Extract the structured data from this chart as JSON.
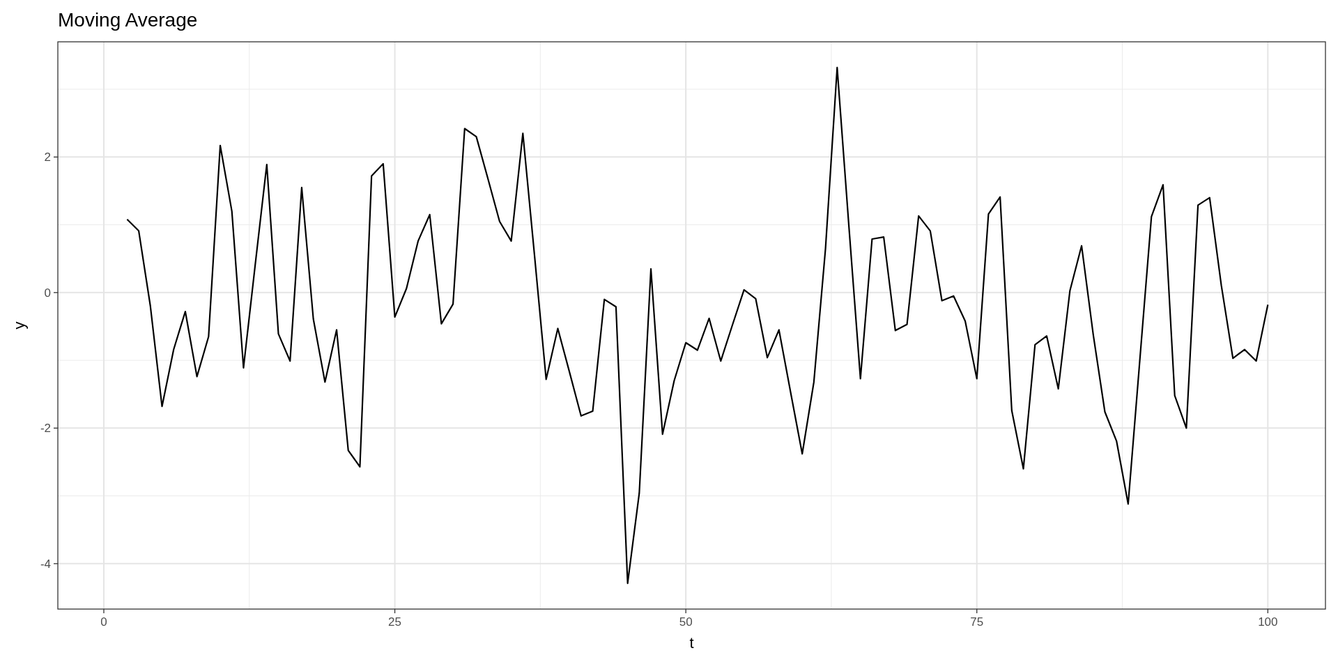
{
  "chart_data": {
    "type": "line",
    "title": "Moving Average",
    "xlabel": "t",
    "ylabel": "y",
    "x": [
      2,
      3,
      4,
      5,
      6,
      7,
      8,
      9,
      10,
      11,
      12,
      13,
      14,
      15,
      16,
      17,
      18,
      19,
      20,
      21,
      22,
      23,
      24,
      25,
      26,
      27,
      28,
      29,
      30,
      31,
      32,
      33,
      34,
      35,
      36,
      37,
      38,
      39,
      40,
      41,
      42,
      43,
      44,
      45,
      46,
      47,
      48,
      49,
      50,
      51,
      52,
      53,
      54,
      55,
      56,
      57,
      58,
      59,
      60,
      61,
      62,
      63,
      64,
      65,
      66,
      67,
      68,
      69,
      70,
      71,
      72,
      73,
      74,
      75,
      76,
      77,
      78,
      79,
      80,
      81,
      82,
      83,
      84,
      85,
      86,
      87,
      88,
      89,
      90,
      91,
      92,
      93,
      94,
      95,
      96,
      97,
      98,
      99,
      100
    ],
    "series": [
      {
        "color": "#000000",
        "values": [
          1.08,
          0.91,
          -0.2,
          -1.68,
          -0.84,
          -0.28,
          -1.24,
          -0.65,
          2.17,
          1.2,
          -1.11,
          0.4,
          1.89,
          -0.61,
          -1.01,
          1.55,
          -0.39,
          -1.32,
          -0.55,
          -2.33,
          -2.57,
          1.72,
          1.9,
          -0.36,
          0.06,
          0.76,
          1.15,
          -0.46,
          -0.17,
          2.42,
          2.3,
          1.68,
          1.05,
          0.76,
          2.35,
          0.55,
          -1.28,
          -0.53,
          -1.17,
          -1.82,
          -1.75,
          -0.1,
          -0.21,
          -4.29,
          -2.96,
          0.35,
          -2.09,
          -1.3,
          -0.74,
          -0.85,
          -0.38,
          -1.01,
          -0.48,
          0.04,
          -0.09,
          -0.96,
          -0.55,
          -1.47,
          -2.38,
          -1.32,
          0.65,
          3.32,
          1.0,
          -1.27,
          0.79,
          0.82,
          -0.56,
          -0.47,
          1.13,
          0.91,
          -0.12,
          -0.05,
          -0.42,
          -1.27,
          1.16,
          1.41,
          -1.74,
          -2.6,
          -0.77,
          -0.64,
          -1.42,
          0.03,
          0.69,
          -0.62,
          -1.76,
          -2.19,
          -3.12,
          -1.0,
          1.12,
          1.59,
          -1.52,
          -2.0,
          1.29,
          1.4,
          0.11,
          -0.97,
          -0.84,
          -1.01,
          -0.18
        ]
      }
    ],
    "xlim": [
      -3.95,
      104.95
    ],
    "ylim": [
      -4.67,
      3.7
    ],
    "xticks": [
      0,
      25,
      50,
      75,
      100
    ],
    "yticks": [
      -4,
      -2,
      0,
      2
    ],
    "grid": true,
    "line_style": "solid",
    "marker": "none"
  }
}
